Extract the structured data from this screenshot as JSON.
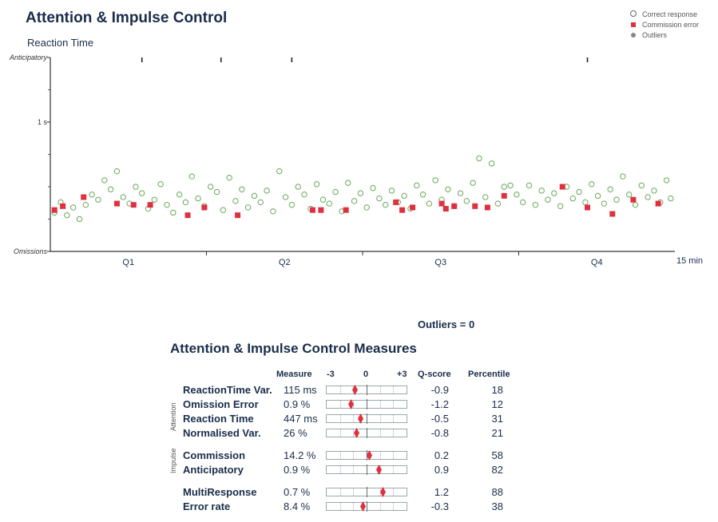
{
  "title": "Attention & Impulse Control",
  "chart_data": {
    "type": "scatter",
    "title": "Attention & Impulse Control",
    "subtitle": "Reaction Time",
    "y_tick_labels": [
      "Anticipatory",
      "1 s",
      "Omissions"
    ],
    "x_tick_labels": [
      "Q1",
      "Q2",
      "Q3",
      "Q4"
    ],
    "x_end_label": "15 min",
    "xlim": [
      0,
      15
    ],
    "ylim": [
      0,
      1.5
    ],
    "legend": {
      "position": "top-right",
      "entries": [
        "Correct response",
        "Commission error",
        "Outliers"
      ]
    },
    "colors": {
      "correct": "#6aa85a",
      "commission": "#e03040",
      "outlier": "#888888",
      "axis": "#333333"
    },
    "anticipatory_marks": [
      2.2,
      4.1,
      5.8,
      12.9
    ],
    "series": [
      {
        "name": "Correct response",
        "points": [
          [
            0.1,
            0.3
          ],
          [
            0.25,
            0.38
          ],
          [
            0.4,
            0.28
          ],
          [
            0.55,
            0.34
          ],
          [
            0.7,
            0.25
          ],
          [
            0.85,
            0.36
          ],
          [
            1.0,
            0.44
          ],
          [
            1.15,
            0.4
          ],
          [
            1.3,
            0.55
          ],
          [
            1.45,
            0.48
          ],
          [
            1.6,
            0.62
          ],
          [
            1.75,
            0.42
          ],
          [
            1.9,
            0.37
          ],
          [
            2.05,
            0.5
          ],
          [
            2.2,
            0.45
          ],
          [
            2.35,
            0.33
          ],
          [
            2.5,
            0.4
          ],
          [
            2.65,
            0.52
          ],
          [
            2.8,
            0.36
          ],
          [
            2.95,
            0.3
          ],
          [
            3.1,
            0.44
          ],
          [
            3.25,
            0.38
          ],
          [
            3.4,
            0.58
          ],
          [
            3.55,
            0.41
          ],
          [
            3.7,
            0.35
          ],
          [
            3.85,
            0.5
          ],
          [
            4.0,
            0.46
          ],
          [
            4.15,
            0.32
          ],
          [
            4.3,
            0.57
          ],
          [
            4.45,
            0.39
          ],
          [
            4.6,
            0.48
          ],
          [
            4.75,
            0.34
          ],
          [
            4.9,
            0.43
          ],
          [
            5.05,
            0.38
          ],
          [
            5.2,
            0.47
          ],
          [
            5.35,
            0.31
          ],
          [
            5.5,
            0.62
          ],
          [
            5.65,
            0.42
          ],
          [
            5.8,
            0.36
          ],
          [
            5.95,
            0.5
          ],
          [
            6.1,
            0.44
          ],
          [
            6.25,
            0.33
          ],
          [
            6.4,
            0.52
          ],
          [
            6.55,
            0.4
          ],
          [
            6.7,
            0.37
          ],
          [
            6.85,
            0.46
          ],
          [
            7.0,
            0.31
          ],
          [
            7.15,
            0.53
          ],
          [
            7.3,
            0.39
          ],
          [
            7.45,
            0.45
          ],
          [
            7.6,
            0.34
          ],
          [
            7.75,
            0.49
          ],
          [
            7.9,
            0.41
          ],
          [
            8.05,
            0.36
          ],
          [
            8.2,
            0.47
          ],
          [
            8.35,
            0.38
          ],
          [
            8.5,
            0.43
          ],
          [
            8.65,
            0.33
          ],
          [
            8.8,
            0.51
          ],
          [
            8.95,
            0.44
          ],
          [
            9.1,
            0.37
          ],
          [
            9.25,
            0.55
          ],
          [
            9.4,
            0.4
          ],
          [
            9.55,
            0.48
          ],
          [
            9.7,
            0.35
          ],
          [
            9.85,
            0.45
          ],
          [
            10.0,
            0.39
          ],
          [
            10.15,
            0.53
          ],
          [
            10.3,
            0.72
          ],
          [
            10.45,
            0.42
          ],
          [
            10.6,
            0.68
          ],
          [
            10.75,
            0.37
          ],
          [
            10.9,
            0.5
          ],
          [
            11.05,
            0.51
          ],
          [
            11.2,
            0.44
          ],
          [
            11.35,
            0.38
          ],
          [
            11.5,
            0.51
          ],
          [
            11.65,
            0.36
          ],
          [
            11.8,
            0.47
          ],
          [
            11.95,
            0.4
          ],
          [
            12.1,
            0.45
          ],
          [
            12.25,
            0.35
          ],
          [
            12.4,
            0.5
          ],
          [
            12.55,
            0.41
          ],
          [
            12.7,
            0.46
          ],
          [
            12.85,
            0.38
          ],
          [
            13.0,
            0.52
          ],
          [
            13.15,
            0.43
          ],
          [
            13.3,
            0.37
          ],
          [
            13.45,
            0.48
          ],
          [
            13.6,
            0.4
          ],
          [
            13.75,
            0.58
          ],
          [
            13.9,
            0.44
          ],
          [
            14.05,
            0.36
          ],
          [
            14.2,
            0.51
          ],
          [
            14.35,
            0.42
          ],
          [
            14.5,
            0.47
          ],
          [
            14.65,
            0.38
          ],
          [
            14.8,
            0.55
          ],
          [
            14.9,
            0.41
          ]
        ]
      },
      {
        "name": "Commission error",
        "points": [
          [
            0.1,
            0.32
          ],
          [
            0.3,
            0.35
          ],
          [
            0.8,
            0.42
          ],
          [
            1.6,
            0.37
          ],
          [
            2.0,
            0.36
          ],
          [
            2.4,
            0.36
          ],
          [
            3.3,
            0.28
          ],
          [
            3.7,
            0.34
          ],
          [
            4.5,
            0.28
          ],
          [
            6.3,
            0.32
          ],
          [
            6.5,
            0.32
          ],
          [
            7.1,
            0.32
          ],
          [
            8.3,
            0.38
          ],
          [
            8.45,
            0.32
          ],
          [
            8.7,
            0.34
          ],
          [
            9.4,
            0.37
          ],
          [
            9.5,
            0.33
          ],
          [
            9.7,
            0.35
          ],
          [
            10.2,
            0.35
          ],
          [
            10.5,
            0.34
          ],
          [
            10.9,
            0.43
          ],
          [
            12.3,
            0.5
          ],
          [
            12.9,
            0.34
          ],
          [
            13.5,
            0.29
          ],
          [
            14.0,
            0.4
          ],
          [
            14.6,
            0.37
          ]
        ]
      }
    ]
  },
  "outliers_text": "Outliers = 0",
  "measures": {
    "title": "Attention & Impulse Control Measures",
    "headers": {
      "measure": "Measure",
      "scale_min": "-3",
      "scale_mid": "0",
      "scale_max": "+3",
      "qscore": "Q-score",
      "percentile": "Percentile"
    },
    "groups": [
      {
        "label": "Attention",
        "rows": [
          {
            "name": "ReactionTime Var.",
            "measure": "115 ms",
            "qscore": "-0.9",
            "q": -0.9,
            "percentile": "18"
          },
          {
            "name": "Omission Error",
            "measure": "0.9 %",
            "qscore": "-1.2",
            "q": -1.2,
            "percentile": "12"
          },
          {
            "name": "Reaction Time",
            "measure": "447 ms",
            "qscore": "-0.5",
            "q": -0.5,
            "percentile": "31"
          },
          {
            "name": "Normalised Var.",
            "measure": "26 %",
            "qscore": "-0.8",
            "q": -0.8,
            "percentile": "21"
          }
        ]
      },
      {
        "label": "Impulse",
        "rows": [
          {
            "name": "Commission",
            "measure": "14.2 %",
            "qscore": "0.2",
            "q": 0.2,
            "percentile": "58"
          },
          {
            "name": "Anticipatory",
            "measure": "0.9 %",
            "qscore": "0.9",
            "q": 0.9,
            "percentile": "82"
          }
        ]
      },
      {
        "label": "",
        "rows": [
          {
            "name": "MultiResponse",
            "measure": "0.7 %",
            "qscore": "1.2",
            "q": 1.2,
            "percentile": "88"
          },
          {
            "name": "Error rate",
            "measure": "8.4 %",
            "qscore": "-0.3",
            "q": -0.3,
            "percentile": "38"
          }
        ]
      }
    ],
    "marker_color": "#e03040"
  }
}
